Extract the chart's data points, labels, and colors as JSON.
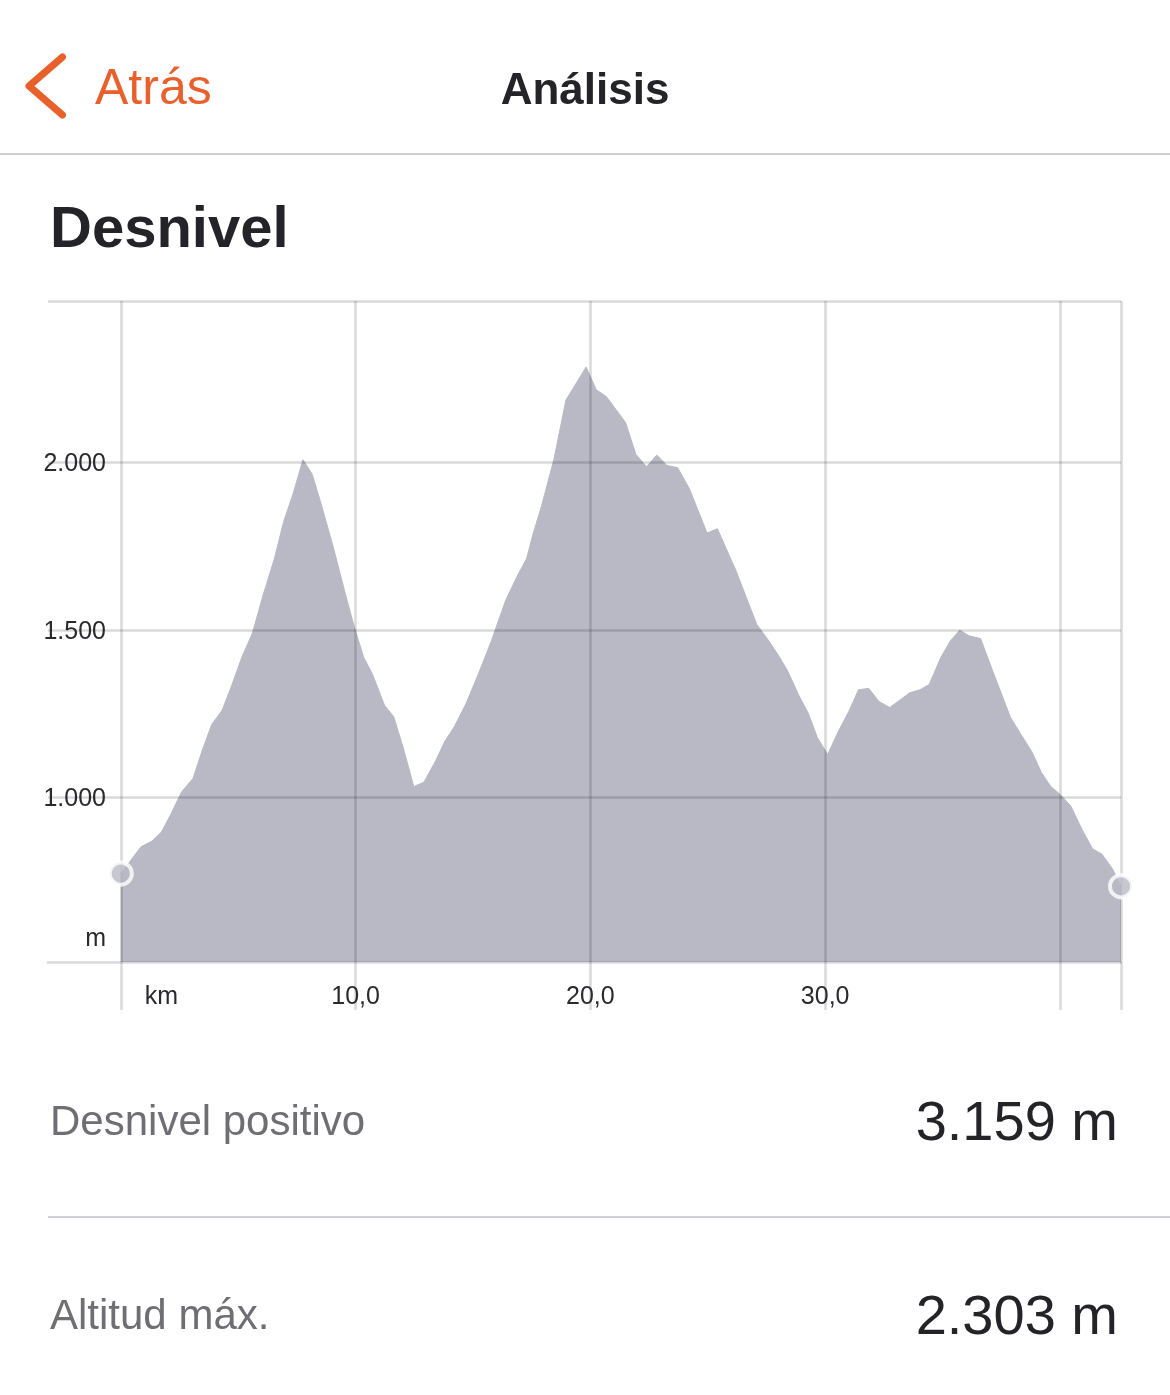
{
  "chart_data": {
    "type": "area",
    "title": "Desnivel",
    "xlabel": "km",
    "ylabel": "m",
    "annotations": [
      "Atrás",
      "Análisis",
      "Desnivel positivo",
      "3.159 m",
      "Altitud máx.",
      "2.303 m"
    ],
    "series": [
      {
        "color": "#b9b9c6",
        "x": [
          0,
          0.86,
          1.33,
          1.73,
          2.13,
          2.58,
          3.08,
          3.47,
          3.87,
          4.31,
          4.7,
          5.16,
          5.6,
          6.05,
          6.54,
          6.94,
          7.34,
          7.76,
          8.15,
          8.55,
          9.05,
          9.54,
          9.94,
          10.34,
          10.73,
          11.23,
          11.63,
          12.06,
          12.48,
          12.91,
          13.41,
          13.81,
          14.2,
          14.7,
          15.2,
          15.79,
          16.38,
          16.88,
          17.28,
          17.57,
          17.92,
          18.45,
          18.96,
          19.82,
          20.25,
          20.69,
          21.09,
          21.5,
          21.94,
          22.39,
          22.83,
          23.26,
          23.72,
          24.22,
          24.97,
          25.41,
          26.2,
          26.7,
          27.09,
          27.59,
          27.99,
          28.4,
          28.88,
          29.28,
          29.67,
          30.11,
          30.57,
          31.02,
          31.42,
          31.86,
          32.29,
          32.75,
          33.18,
          33.6,
          34.04,
          34.43,
          34.93,
          35.33,
          35.73,
          36.13,
          36.62,
          37.13,
          37.89,
          38.32,
          38.82,
          39.21,
          39.61,
          40,
          40.46,
          40.94,
          41.39,
          41.79,
          42.24,
          42.6
        ],
        "values": [
          772,
          852,
          869,
          896,
          949,
          1015,
          1057,
          1140,
          1217,
          1259,
          1329,
          1419,
          1489,
          1601,
          1712,
          1824,
          1907,
          2008,
          1965,
          1872,
          1747,
          1614,
          1510,
          1419,
          1366,
          1275,
          1240,
          1140,
          1032,
          1045,
          1109,
          1168,
          1210,
          1279,
          1363,
          1468,
          1586,
          1660,
          1712,
          1789,
          1870,
          2010,
          2186,
          2285,
          2217,
          2196,
          2158,
          2119,
          2024,
          1987,
          2022,
          1991,
          1984,
          1921,
          1789,
          1802,
          1677,
          1586,
          1516,
          1468,
          1426,
          1378,
          1304,
          1251,
          1178,
          1128,
          1198,
          1258,
          1321,
          1325,
          1286,
          1268,
          1290,
          1312,
          1321,
          1337,
          1418,
          1467,
          1499,
          1482,
          1474,
          1378,
          1239,
          1190,
          1134,
          1074,
          1032,
          1009,
          974,
          904,
          846,
          830,
          786,
          734
        ]
      },
      {
        "type": "scatter",
        "color": "#b9b9c6",
        "marker": "circle",
        "x": [
          0,
          42.6
        ],
        "values": [
          772,
          734
        ]
      }
    ],
    "xlim": [
      -3.1,
      42.6
    ],
    "xticks": [
      {
        "value": 0,
        "label": null
      },
      {
        "value": 10,
        "label": "10,0"
      },
      {
        "value": 20,
        "label": "20,0"
      },
      {
        "value": 30,
        "label": "30,0"
      },
      {
        "value": 40,
        "label": null
      },
      {
        "value": 42.6,
        "label": null
      }
    ],
    "ylim": [
      508,
      2482
    ],
    "yticks": [
      {
        "value": 1000,
        "label": "1.000"
      },
      {
        "value": 1500,
        "label": "1.500"
      },
      {
        "value": 2000,
        "label": "2.000"
      },
      {
        "value": 2482,
        "label": null
      }
    ],
    "grid": true,
    "marker": "none"
  }
}
